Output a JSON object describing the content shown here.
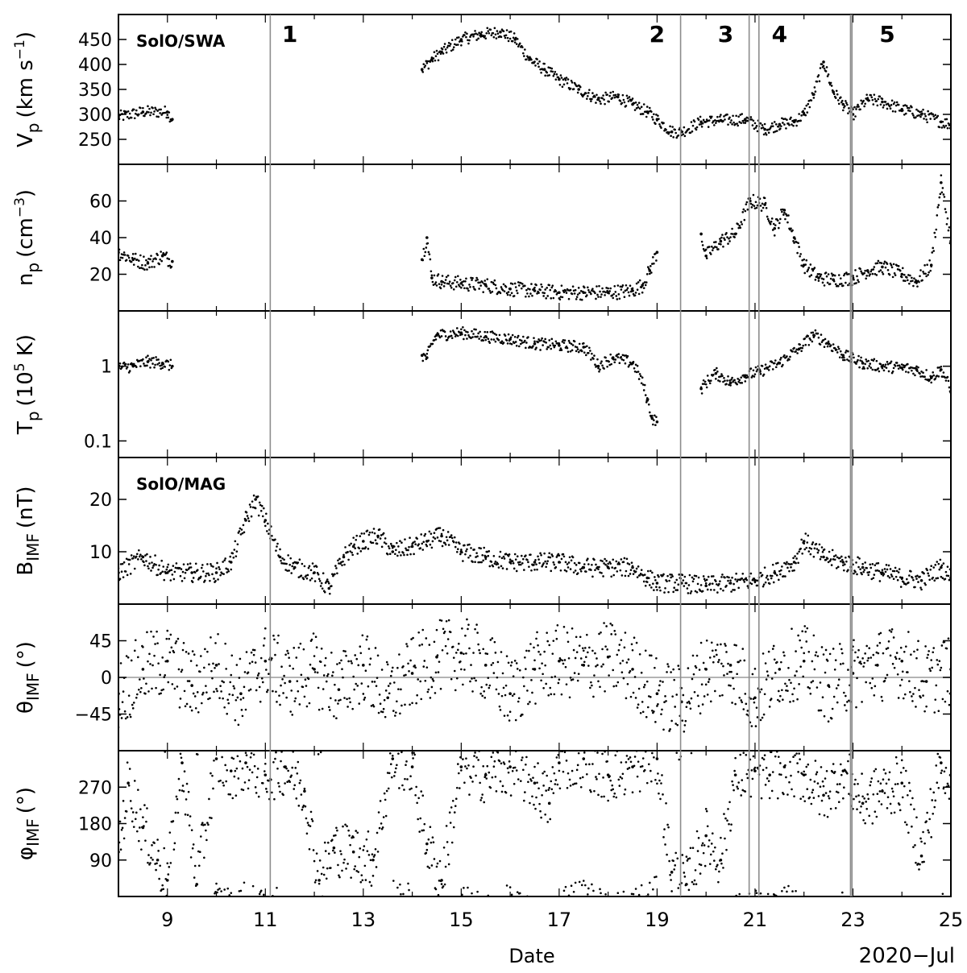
{
  "figure": {
    "xlabel": "Date",
    "date_label": "2020−Jul",
    "instrument_labels": [
      "SolO/SWA",
      "SolO/MAG"
    ]
  },
  "colors": {
    "data": "#000000",
    "event_lines": "#8c8c8c",
    "event_labels": "#a8a8a8",
    "zero_line": "#9a9a9a"
  },
  "chart_data": {
    "type": "scatter",
    "x_unit": "day of July 2020",
    "xlim": [
      8,
      25
    ],
    "x_ticks": [
      9,
      11,
      13,
      15,
      17,
      19,
      21,
      23,
      25
    ],
    "x_tick_labels": [
      "9",
      "11",
      "13",
      "15",
      "17",
      "19",
      "21",
      "23",
      "25"
    ],
    "events": [
      {
        "label": "1",
        "x": 11.1,
        "label_x": 11.5
      },
      {
        "label": "2",
        "x": 19.48,
        "label_x": 19.0
      },
      {
        "label": "3",
        "x": 20.88,
        "label_x": 20.4
      },
      {
        "label": "",
        "x": 21.08,
        "label_x": null
      },
      {
        "label": "4",
        "x": 22.95,
        "label_x": 21.5
      },
      {
        "label": "5",
        "x": 22.98,
        "label_x": 23.7
      }
    ],
    "panels": [
      {
        "id": "vp",
        "ylabel_main": "V",
        "ylabel_sub": "p",
        "ylabel_unit": "(km s",
        "ylabel_unit_sup": "−1",
        "ylabel_unit_end": ")",
        "scale": "linear",
        "ylim": [
          200,
          500
        ],
        "y_ticks": [
          250,
          300,
          350,
          400,
          450
        ],
        "y_tick_labels": [
          "250",
          "300",
          "350",
          "400",
          "450"
        ],
        "instrument": "SolO/SWA",
        "segments": [
          {
            "x": [
              8.0,
              8.5,
              9.0,
              9.1
            ],
            "y": [
              295,
              305,
              305,
              290
            ]
          },
          {
            "x": [
              14.2,
              14.4,
              14.6,
              15.0,
              15.4,
              15.8,
              16.1,
              16.4,
              16.7,
              17.0,
              17.4,
              17.8,
              18.2,
              18.5,
              18.8,
              19.0,
              19.3,
              19.5,
              19.9,
              20.3,
              20.8,
              21.2,
              21.5,
              21.8,
              22.0,
              22.2,
              22.4,
              22.6,
              22.8,
              23.0,
              23.3,
              23.6,
              24.0,
              24.4,
              24.8,
              25.0
            ],
            "y": [
              390,
              410,
              425,
              450,
              460,
              465,
              450,
              410,
              390,
              370,
              350,
              330,
              335,
              320,
              305,
              290,
              265,
              265,
              285,
              288,
              290,
              270,
              280,
              285,
              300,
              340,
              405,
              345,
              320,
              300,
              330,
              325,
              310,
              300,
              285,
              280
            ]
          }
        ]
      },
      {
        "id": "np",
        "ylabel_main": "n",
        "ylabel_sub": "p",
        "ylabel_unit": "(cm",
        "ylabel_unit_sup": "−3",
        "ylabel_unit_end": ")",
        "scale": "linear",
        "ylim": [
          0,
          80
        ],
        "y_ticks": [
          20,
          40,
          60
        ],
        "y_tick_labels": [
          "20",
          "40",
          "60"
        ],
        "segments": [
          {
            "x": [
              8.0,
              8.3,
              8.6,
              8.9,
              9.1
            ],
            "y": [
              32,
              28,
              26,
              30,
              27
            ]
          },
          {
            "x": [
              14.2,
              14.3,
              14.4,
              14.6,
              15.0,
              15.5,
              16.0,
              16.5,
              17.0,
              17.5,
              18.0,
              18.5,
              18.7,
              18.85,
              19.0
            ],
            "y": [
              28,
              40,
              18,
              16,
              15,
              14,
              12,
              11,
              10,
              10,
              10,
              11,
              14,
              22,
              32
            ]
          },
          {
            "x": [
              19.9,
              20.0,
              20.3,
              20.6,
              20.9,
              21.2,
              21.4,
              21.6,
              21.8,
              22.0,
              22.3,
              22.6,
              23.0,
              23.3,
              23.6,
              24.0,
              24.3,
              24.6,
              24.8,
              25.0
            ],
            "y": [
              42,
              30,
              38,
              42,
              60,
              58,
              45,
              55,
              40,
              25,
              18,
              17,
              18,
              22,
              24,
              20,
              16,
              25,
              70,
              38
            ]
          }
        ]
      },
      {
        "id": "tp",
        "ylabel_main": "T",
        "ylabel_sub": "p",
        "ylabel_unit": "(10",
        "ylabel_unit_sup": "5",
        "ylabel_unit_end": " K)",
        "scale": "log",
        "ylim": [
          0.06,
          5.5
        ],
        "y_ticks": [
          0.1,
          1
        ],
        "y_tick_labels": [
          "0.1",
          "1"
        ],
        "segments": [
          {
            "x": [
              8.0,
              8.3,
              8.6,
              8.9,
              9.1
            ],
            "y": [
              0.95,
              1.0,
              1.15,
              1.1,
              1.0
            ]
          },
          {
            "x": [
              14.2,
              14.3,
              14.5,
              15.0,
              15.5,
              16.0,
              16.5,
              17.0,
              17.5,
              17.8,
              18.1,
              18.5,
              18.8,
              18.9,
              19.0
            ],
            "y": [
              1.4,
              1.3,
              2.6,
              2.8,
              2.5,
              2.3,
              2.0,
              1.9,
              1.8,
              1.0,
              1.3,
              1.1,
              0.35,
              0.2,
              0.18
            ]
          },
          {
            "x": [
              19.9,
              20.2,
              20.5,
              20.8,
              21.1,
              21.5,
              21.9,
              22.2,
              22.5,
              22.8,
              23.2,
              23.6,
              24.0,
              24.3,
              24.6,
              24.8,
              25.0
            ],
            "y": [
              0.5,
              0.8,
              0.6,
              0.75,
              0.85,
              1.1,
              1.7,
              2.6,
              2.0,
              1.4,
              1.1,
              1.0,
              0.95,
              0.9,
              0.7,
              0.9,
              0.45
            ]
          }
        ]
      },
      {
        "id": "bimf",
        "ylabel_main": "B",
        "ylabel_sub": "IMF",
        "ylabel_unit": "(nT)",
        "ylabel_unit_sup": "",
        "ylabel_unit_end": "",
        "scale": "linear",
        "ylim": [
          0,
          28
        ],
        "y_ticks": [
          10,
          20
        ],
        "y_tick_labels": [
          "10",
          "20"
        ],
        "instrument": "SolO/MAG",
        "segments": [
          {
            "x": [
              8.0,
              8.5,
              9.0,
              9.5,
              10.0,
              10.3,
              10.6,
              10.8,
              11.0,
              11.3,
              11.6,
              12.0,
              12.3,
              12.6,
              12.8,
              13.0,
              13.3,
              13.6,
              14.0,
              14.3,
              14.6,
              15.0,
              15.5,
              16.0,
              16.5,
              17.0,
              17.5,
              18.0,
              18.5,
              18.8,
              19.0,
              19.5,
              20.0,
              20.5,
              21.0,
              21.4,
              21.8,
              22.0,
              22.4,
              22.8,
              23.2,
              23.6,
              24.0,
              24.4,
              24.8,
              25.0
            ],
            "y": [
              6,
              9,
              6,
              6,
              6,
              8,
              16,
              20,
              16,
              9,
              7,
              6,
              3,
              9,
              11,
              12,
              13,
              10,
              11,
              12,
              13,
              10,
              9,
              8,
              8,
              8,
              7,
              7,
              7,
              5,
              4,
              4,
              3.5,
              4,
              4.5,
              6,
              8,
              12,
              9,
              8,
              7,
              6,
              5,
              4.5,
              7,
              5
            ]
          }
        ]
      },
      {
        "id": "theta",
        "ylabel_main": "θ",
        "ylabel_sub": "IMF",
        "ylabel_unit": "(°)",
        "ylabel_unit_sup": "",
        "ylabel_unit_end": "",
        "scale": "linear",
        "ylim": [
          -90,
          90
        ],
        "y_ticks": [
          -45,
          0,
          45
        ],
        "y_tick_labels": [
          "−45",
          "0",
          "45"
        ],
        "zero_line": 0,
        "segments": [
          {
            "x": [
              8.0,
              8.5,
              9.0,
              9.5,
              10.0,
              10.5,
              11.0,
              11.5,
              12.0,
              12.5,
              13.0,
              13.5,
              14.0,
              14.5,
              15.0,
              15.5,
              16.0,
              16.5,
              17.0,
              17.5,
              18.0,
              18.5,
              19.0,
              19.5,
              20.0,
              20.5,
              21.0,
              21.5,
              22.0,
              22.5,
              23.0,
              23.5,
              24.0,
              24.5,
              25.0
            ],
            "y": [
              -20,
              10,
              20,
              -10,
              15,
              -20,
              20,
              -5,
              10,
              -15,
              15,
              -25,
              5,
              25,
              30,
              15,
              -20,
              10,
              20,
              15,
              25,
              10,
              -20,
              -30,
              10,
              15,
              -25,
              10,
              20,
              -10,
              5,
              15,
              20,
              -5,
              10
            ]
          }
        ]
      },
      {
        "id": "phi",
        "ylabel_main": "φ",
        "ylabel_sub": "IMF",
        "ylabel_unit": "(°)",
        "ylabel_unit_sup": "",
        "ylabel_unit_end": "",
        "scale": "linear",
        "ylim": [
          0,
          360
        ],
        "y_ticks": [
          90,
          180,
          270
        ],
        "y_tick_labels": [
          "90",
          "180",
          "270"
        ],
        "segments": [
          {
            "x": [
              8.0,
              8.2,
              8.5,
              8.8,
              9.0,
              9.3,
              9.6,
              10.0,
              10.3,
              10.6,
              11.0,
              11.4,
              11.8,
              12.1,
              12.4,
              12.8,
              13.2,
              13.6,
              14.0,
              14.3,
              14.6,
              15.0,
              15.5,
              16.0,
              16.5,
              16.8,
              17.0,
              17.5,
              18.0,
              18.5,
              19.0,
              19.3,
              19.6,
              20.0,
              20.3,
              20.6,
              21.0,
              21.3,
              21.6,
              22.0,
              22.4,
              22.8,
              23.2,
              23.6,
              24.0,
              24.4,
              24.8,
              25.0
            ],
            "y": [
              110,
              280,
              170,
              90,
              40,
              330,
              30,
              340,
              310,
              330,
              300,
              320,
              260,
              40,
              120,
              110,
              90,
              340,
              320,
              130,
              40,
              320,
              300,
              320,
              280,
              230,
              330,
              340,
              300,
              320,
              340,
              60,
              30,
              150,
              90,
              300,
              310,
              300,
              320,
              300,
              250,
              310,
              230,
              260,
              280,
              100,
              330,
              300
            ]
          }
        ]
      }
    ]
  }
}
